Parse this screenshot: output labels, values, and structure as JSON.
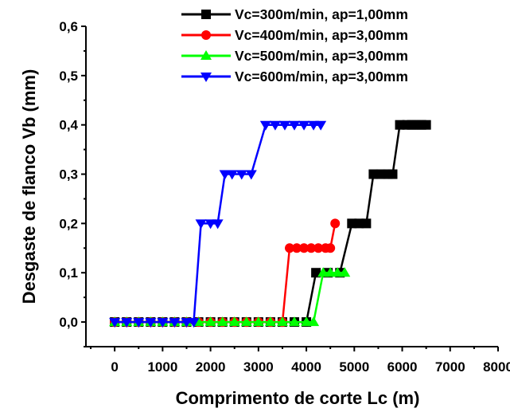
{
  "chart_data": {
    "type": "line",
    "xlabel": "Comprimento de corte Lc (m)",
    "ylabel": "Desgaste de flanco Vb (mm)",
    "xlim": [
      -600,
      8000
    ],
    "ylim": [
      -0.05,
      0.6
    ],
    "x_ticks": [
      0,
      1000,
      2000,
      3000,
      4000,
      5000,
      6000,
      7000,
      8000
    ],
    "x_tick_labels": [
      "0",
      "1000",
      "2000",
      "3000",
      "4000",
      "5000",
      "6000",
      "7000",
      "8000"
    ],
    "y_ticks": [
      0.0,
      0.1,
      0.2,
      0.3,
      0.4,
      0.5,
      0.6
    ],
    "y_tick_labels": [
      "0,0",
      "0,1",
      "0,2",
      "0,3",
      "0,4",
      "0,5",
      "0,6"
    ],
    "legend_position": "top-right",
    "grid": false,
    "series": [
      {
        "name": "Vc=300m/min, ap=1,00mm",
        "color": "#000000",
        "marker": "square",
        "x": [
          0,
          250,
          500,
          750,
          1000,
          1250,
          1500,
          1750,
          2000,
          2250,
          2500,
          2750,
          3000,
          3250,
          3500,
          3750,
          4000,
          4200,
          4450,
          4700,
          4950,
          5100,
          5250,
          5400,
          5550,
          5700,
          5800,
          5950,
          6100,
          6200,
          6300,
          6400,
          6500
        ],
        "values": [
          0,
          0,
          0,
          0,
          0,
          0,
          0,
          0,
          0,
          0,
          0,
          0,
          0,
          0,
          0,
          0,
          0,
          0.1,
          0.1,
          0.1,
          0.2,
          0.2,
          0.2,
          0.3,
          0.3,
          0.3,
          0.3,
          0.4,
          0.4,
          0.4,
          0.4,
          0.4,
          0.4
        ]
      },
      {
        "name": "Vc=400m/min, ap=3,00mm",
        "color": "#ff0000",
        "marker": "circle",
        "x": [
          0,
          250,
          500,
          750,
          1000,
          1250,
          1500,
          1750,
          2000,
          2250,
          2500,
          2750,
          3000,
          3250,
          3500,
          3650,
          3800,
          3950,
          4100,
          4250,
          4400,
          4500,
          4600
        ],
        "values": [
          0,
          0,
          0,
          0,
          0,
          0,
          0,
          0,
          0,
          0,
          0,
          0,
          0,
          0,
          0,
          0.15,
          0.15,
          0.15,
          0.15,
          0.15,
          0.15,
          0.15,
          0.2
        ]
      },
      {
        "name": "Vc=500m/min, ap=3,00mm",
        "color": "#00ff00",
        "marker": "triangle-up",
        "x": [
          0,
          250,
          500,
          750,
          1000,
          1250,
          1500,
          1750,
          2000,
          2250,
          2500,
          2750,
          3000,
          3250,
          3500,
          3750,
          4000,
          4150,
          4350,
          4500,
          4650,
          4800
        ],
        "values": [
          0,
          0,
          0,
          0,
          0,
          0,
          0,
          0,
          0,
          0,
          0,
          0,
          0,
          0,
          0,
          0,
          0,
          0,
          0.1,
          0.1,
          0.1,
          0.1
        ]
      },
      {
        "name": "Vc=600m/min, ap=3,00mm",
        "color": "#0000ff",
        "marker": "triangle-down",
        "x": [
          0,
          250,
          500,
          750,
          1000,
          1250,
          1500,
          1650,
          1800,
          2000,
          2150,
          2300,
          2450,
          2650,
          2850,
          3150,
          3350,
          3550,
          3750,
          3950,
          4150,
          4300
        ],
        "values": [
          0,
          0,
          0,
          0,
          0,
          0,
          0,
          0,
          0.2,
          0.2,
          0.2,
          0.3,
          0.3,
          0.3,
          0.3,
          0.4,
          0.4,
          0.4,
          0.4,
          0.4,
          0.4,
          0.4
        ]
      }
    ]
  }
}
